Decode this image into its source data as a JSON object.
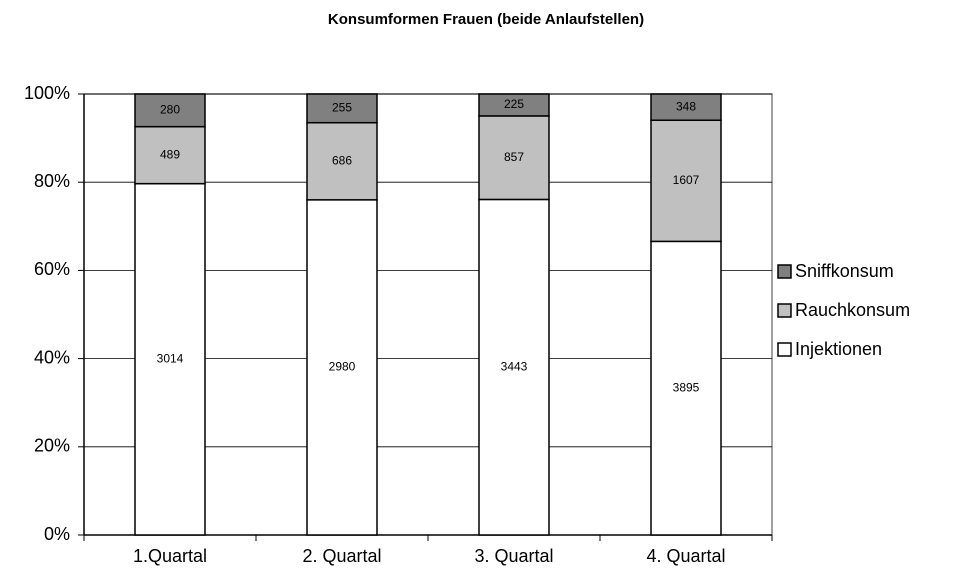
{
  "chart_data": {
    "type": "bar",
    "stacked": "percent",
    "title": "Konsumformen Frauen (beide Anlaufstellen)",
    "categories": [
      "1.Quartal",
      "2. Quartal",
      "3. Quartal",
      "4. Quartal"
    ],
    "series": [
      {
        "name": "Injektionen",
        "color": "#ffffff",
        "values": [
          3014,
          2980,
          3443,
          3895
        ]
      },
      {
        "name": "Rauchkonsum",
        "color": "#c0c0c0",
        "values": [
          489,
          686,
          857,
          1607
        ]
      },
      {
        "name": "Sniffkonsum",
        "color": "#808080",
        "values": [
          280,
          255,
          225,
          348
        ]
      }
    ],
    "ylim": [
      0,
      100
    ],
    "yticks": [
      {
        "value": 0,
        "label": "0%"
      },
      {
        "value": 20,
        "label": "20%"
      },
      {
        "value": 40,
        "label": "40%"
      },
      {
        "value": 60,
        "label": "60%"
      },
      {
        "value": 80,
        "label": "80%"
      },
      {
        "value": 100,
        "label": "100%"
      }
    ],
    "grid": true,
    "legend": "right"
  }
}
